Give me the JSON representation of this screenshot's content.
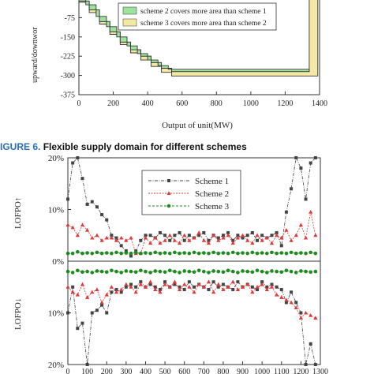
{
  "caption": {
    "figure_label": "IGURE 6.",
    "text": " Flexible supply domain for different schemes",
    "label_color": "#2a6ebb"
  },
  "chart_data": [
    {
      "type": "area",
      "xlabel": "Output of unit(MW)",
      "ylabel": "upward/downwor",
      "xlim": [
        0,
        1400
      ],
      "ylim": [
        -375,
        0
      ],
      "xticks": [
        0,
        200,
        400,
        600,
        800,
        1000,
        1200,
        1400
      ],
      "yticks": [
        -75,
        -150,
        -225,
        -300,
        -375
      ],
      "ytick_labels": [
        "-75",
        "-150",
        "-225",
        "-300",
        "-375"
      ],
      "legend_position": "top-right",
      "series": [
        {
          "name": "scheme 2 covers more area than scheme 1",
          "color": "#9de39d",
          "edge": [
            [
              0,
              -10
            ],
            [
              60,
              -45
            ],
            [
              120,
              -90
            ],
            [
              180,
              -130
            ],
            [
              240,
              -170
            ],
            [
              300,
              -200
            ],
            [
              360,
              -225
            ],
            [
              420,
              -250
            ],
            [
              480,
              -272
            ],
            [
              540,
              -285
            ],
            [
              1340,
              -285
            ]
          ],
          "inner": [
            [
              0,
              -5
            ],
            [
              40,
              -25
            ],
            [
              100,
              -70
            ],
            [
              160,
              -110
            ],
            [
              220,
              -150
            ],
            [
              280,
              -185
            ],
            [
              340,
              -215
            ],
            [
              400,
              -240
            ],
            [
              460,
              -262
            ],
            [
              520,
              -276
            ],
            [
              1340,
              -276
            ]
          ]
        },
        {
          "name": "scheme 3 covers more area than scheme 2",
          "color": "#f3e8a4",
          "edge": [
            [
              0,
              -15
            ],
            [
              60,
              -55
            ],
            [
              120,
              -100
            ],
            [
              180,
              -140
            ],
            [
              240,
              -180
            ],
            [
              300,
              -212
            ],
            [
              360,
              -240
            ],
            [
              420,
              -265
            ],
            [
              480,
              -288
            ],
            [
              540,
              -302
            ],
            [
              1390,
              -302
            ],
            [
              1390,
              0
            ]
          ],
          "inner": [
            [
              0,
              -10
            ],
            [
              60,
              -45
            ],
            [
              120,
              -90
            ],
            [
              180,
              -130
            ],
            [
              240,
              -170
            ],
            [
              300,
              -200
            ],
            [
              360,
              -225
            ],
            [
              420,
              -250
            ],
            [
              480,
              -272
            ],
            [
              540,
              -285
            ],
            [
              1340,
              -285
            ],
            [
              1340,
              0
            ]
          ]
        }
      ]
    },
    {
      "type": "line",
      "xlim": [
        0,
        1300
      ],
      "xticks": [
        0,
        100,
        200,
        300,
        400,
        500,
        600,
        700,
        800,
        900,
        1000,
        1100,
        1200,
        1300
      ],
      "top_panel": {
        "ylabel": "LOFPO↑",
        "ylim": [
          0,
          20
        ],
        "yticks": [
          0,
          10,
          20
        ],
        "ytick_labels": [
          "0%",
          "10%",
          "20%"
        ]
      },
      "bottom_panel": {
        "ylabel": "LOFPO↓",
        "ylim": [
          0,
          20
        ],
        "yticks": [
          10,
          20
        ],
        "ytick_labels": [
          "10%",
          "20%"
        ]
      },
      "legend_position": "top-center",
      "x": [
        0,
        25,
        50,
        75,
        100,
        125,
        150,
        175,
        200,
        225,
        250,
        275,
        300,
        325,
        350,
        375,
        400,
        425,
        450,
        475,
        500,
        525,
        550,
        575,
        600,
        625,
        650,
        675,
        700,
        725,
        750,
        775,
        800,
        825,
        850,
        875,
        900,
        925,
        950,
        975,
        1000,
        1025,
        1050,
        1075,
        1100,
        1125,
        1150,
        1175,
        1200,
        1225,
        1250,
        1275
      ],
      "series": [
        {
          "name": "Scheme 1",
          "color": "#444444",
          "marker": "square",
          "up": [
            12,
            19,
            20,
            16,
            11,
            11.5,
            10.5,
            9,
            8,
            5,
            4.5,
            3,
            2,
            1,
            2,
            4,
            5,
            5,
            4.5,
            5.5,
            5,
            4,
            5,
            5.5,
            4,
            5,
            4.5,
            5,
            5.5,
            4,
            5,
            4.5,
            5,
            5.5,
            4,
            5,
            4.5,
            5,
            5.5,
            4,
            5,
            4.5,
            5,
            5.5,
            3,
            9.5,
            14,
            20,
            18,
            12,
            19,
            20
          ],
          "down": [
            10,
            5,
            13,
            12,
            20,
            10,
            9.5,
            8.5,
            10,
            6,
            5.5,
            6,
            5,
            4.5,
            5,
            4,
            5,
            4.5,
            5,
            5.5,
            4,
            5,
            4.5,
            5,
            5.5,
            4,
            5,
            4.5,
            5,
            5.5,
            4,
            5,
            4.5,
            5,
            5.5,
            4,
            5,
            4.5,
            5,
            5.5,
            4,
            5,
            4.5,
            5,
            5.5,
            8,
            6,
            8,
            10,
            20,
            16,
            20
          ]
        },
        {
          "name": "Scheme 2",
          "color": "#e03a3a",
          "marker": "triangle",
          "up": [
            7,
            6.5,
            5,
            7,
            6,
            4.5,
            5,
            4,
            4.5,
            4.5,
            4,
            4.5,
            4,
            4.5,
            1.5,
            1.5,
            4.5,
            3.5,
            4.5,
            3.5,
            4,
            5,
            4,
            3.5,
            5,
            4,
            4.5,
            5.5,
            4,
            3.5,
            5,
            4,
            4.5,
            5,
            3.5,
            4.5,
            5,
            4,
            3.5,
            5,
            4,
            4.5,
            3.5,
            5,
            4.5,
            6,
            4,
            5,
            7,
            4.5,
            9.5,
            5
          ],
          "down": [
            5,
            6,
            6.5,
            4.5,
            7,
            6,
            5.5,
            8,
            6.5,
            5,
            6,
            5.5,
            4.5,
            5,
            6,
            4.5,
            5,
            4,
            5.5,
            6,
            4.5,
            5,
            4,
            5.5,
            4.5,
            5,
            6,
            4.5,
            5,
            4,
            6,
            4.5,
            5.5,
            5,
            4,
            5.5,
            5,
            4.5,
            6,
            5,
            4.5,
            5.5,
            5,
            6.5,
            7,
            7.5,
            8,
            9,
            11,
            10,
            10.5,
            11
          ]
        },
        {
          "name": "Scheme 3",
          "color": "#1f8a1f",
          "marker": "circle",
          "up": [
            1.5,
            1.5,
            1.8,
            1.5,
            1.6,
            1.5,
            1.7,
            1.5,
            1.6,
            1.5,
            1.7,
            1.5,
            1.6,
            1.5,
            1.7,
            1.5,
            1.6,
            1.5,
            1.7,
            1.5,
            1.6,
            1.5,
            1.7,
            1.5,
            1.6,
            1.5,
            1.7,
            1.5,
            1.6,
            1.5,
            1.7,
            1.5,
            1.6,
            1.5,
            1.7,
            1.5,
            1.6,
            1.5,
            1.7,
            1.5,
            1.6,
            1.5,
            1.7,
            1.5,
            1.6,
            1.5,
            1.7,
            1.5,
            1.6,
            1.5,
            1.7,
            1.5
          ],
          "down": [
            2,
            2.2,
            1.8,
            2.1,
            2,
            2.2,
            1.9,
            2,
            2.1,
            1.8,
            2,
            2.2,
            1.9,
            2,
            2.1,
            1.8,
            2,
            2.2,
            1.9,
            2,
            2.1,
            1.8,
            2,
            2.2,
            1.9,
            2,
            2.1,
            1.8,
            2,
            2.2,
            1.9,
            2,
            2.1,
            1.8,
            2,
            2.2,
            1.9,
            2,
            2.1,
            1.8,
            2,
            2.2,
            1.9,
            2,
            2.1,
            1.8,
            2,
            2.2,
            1.9,
            2,
            2.1,
            2
          ]
        }
      ]
    }
  ]
}
